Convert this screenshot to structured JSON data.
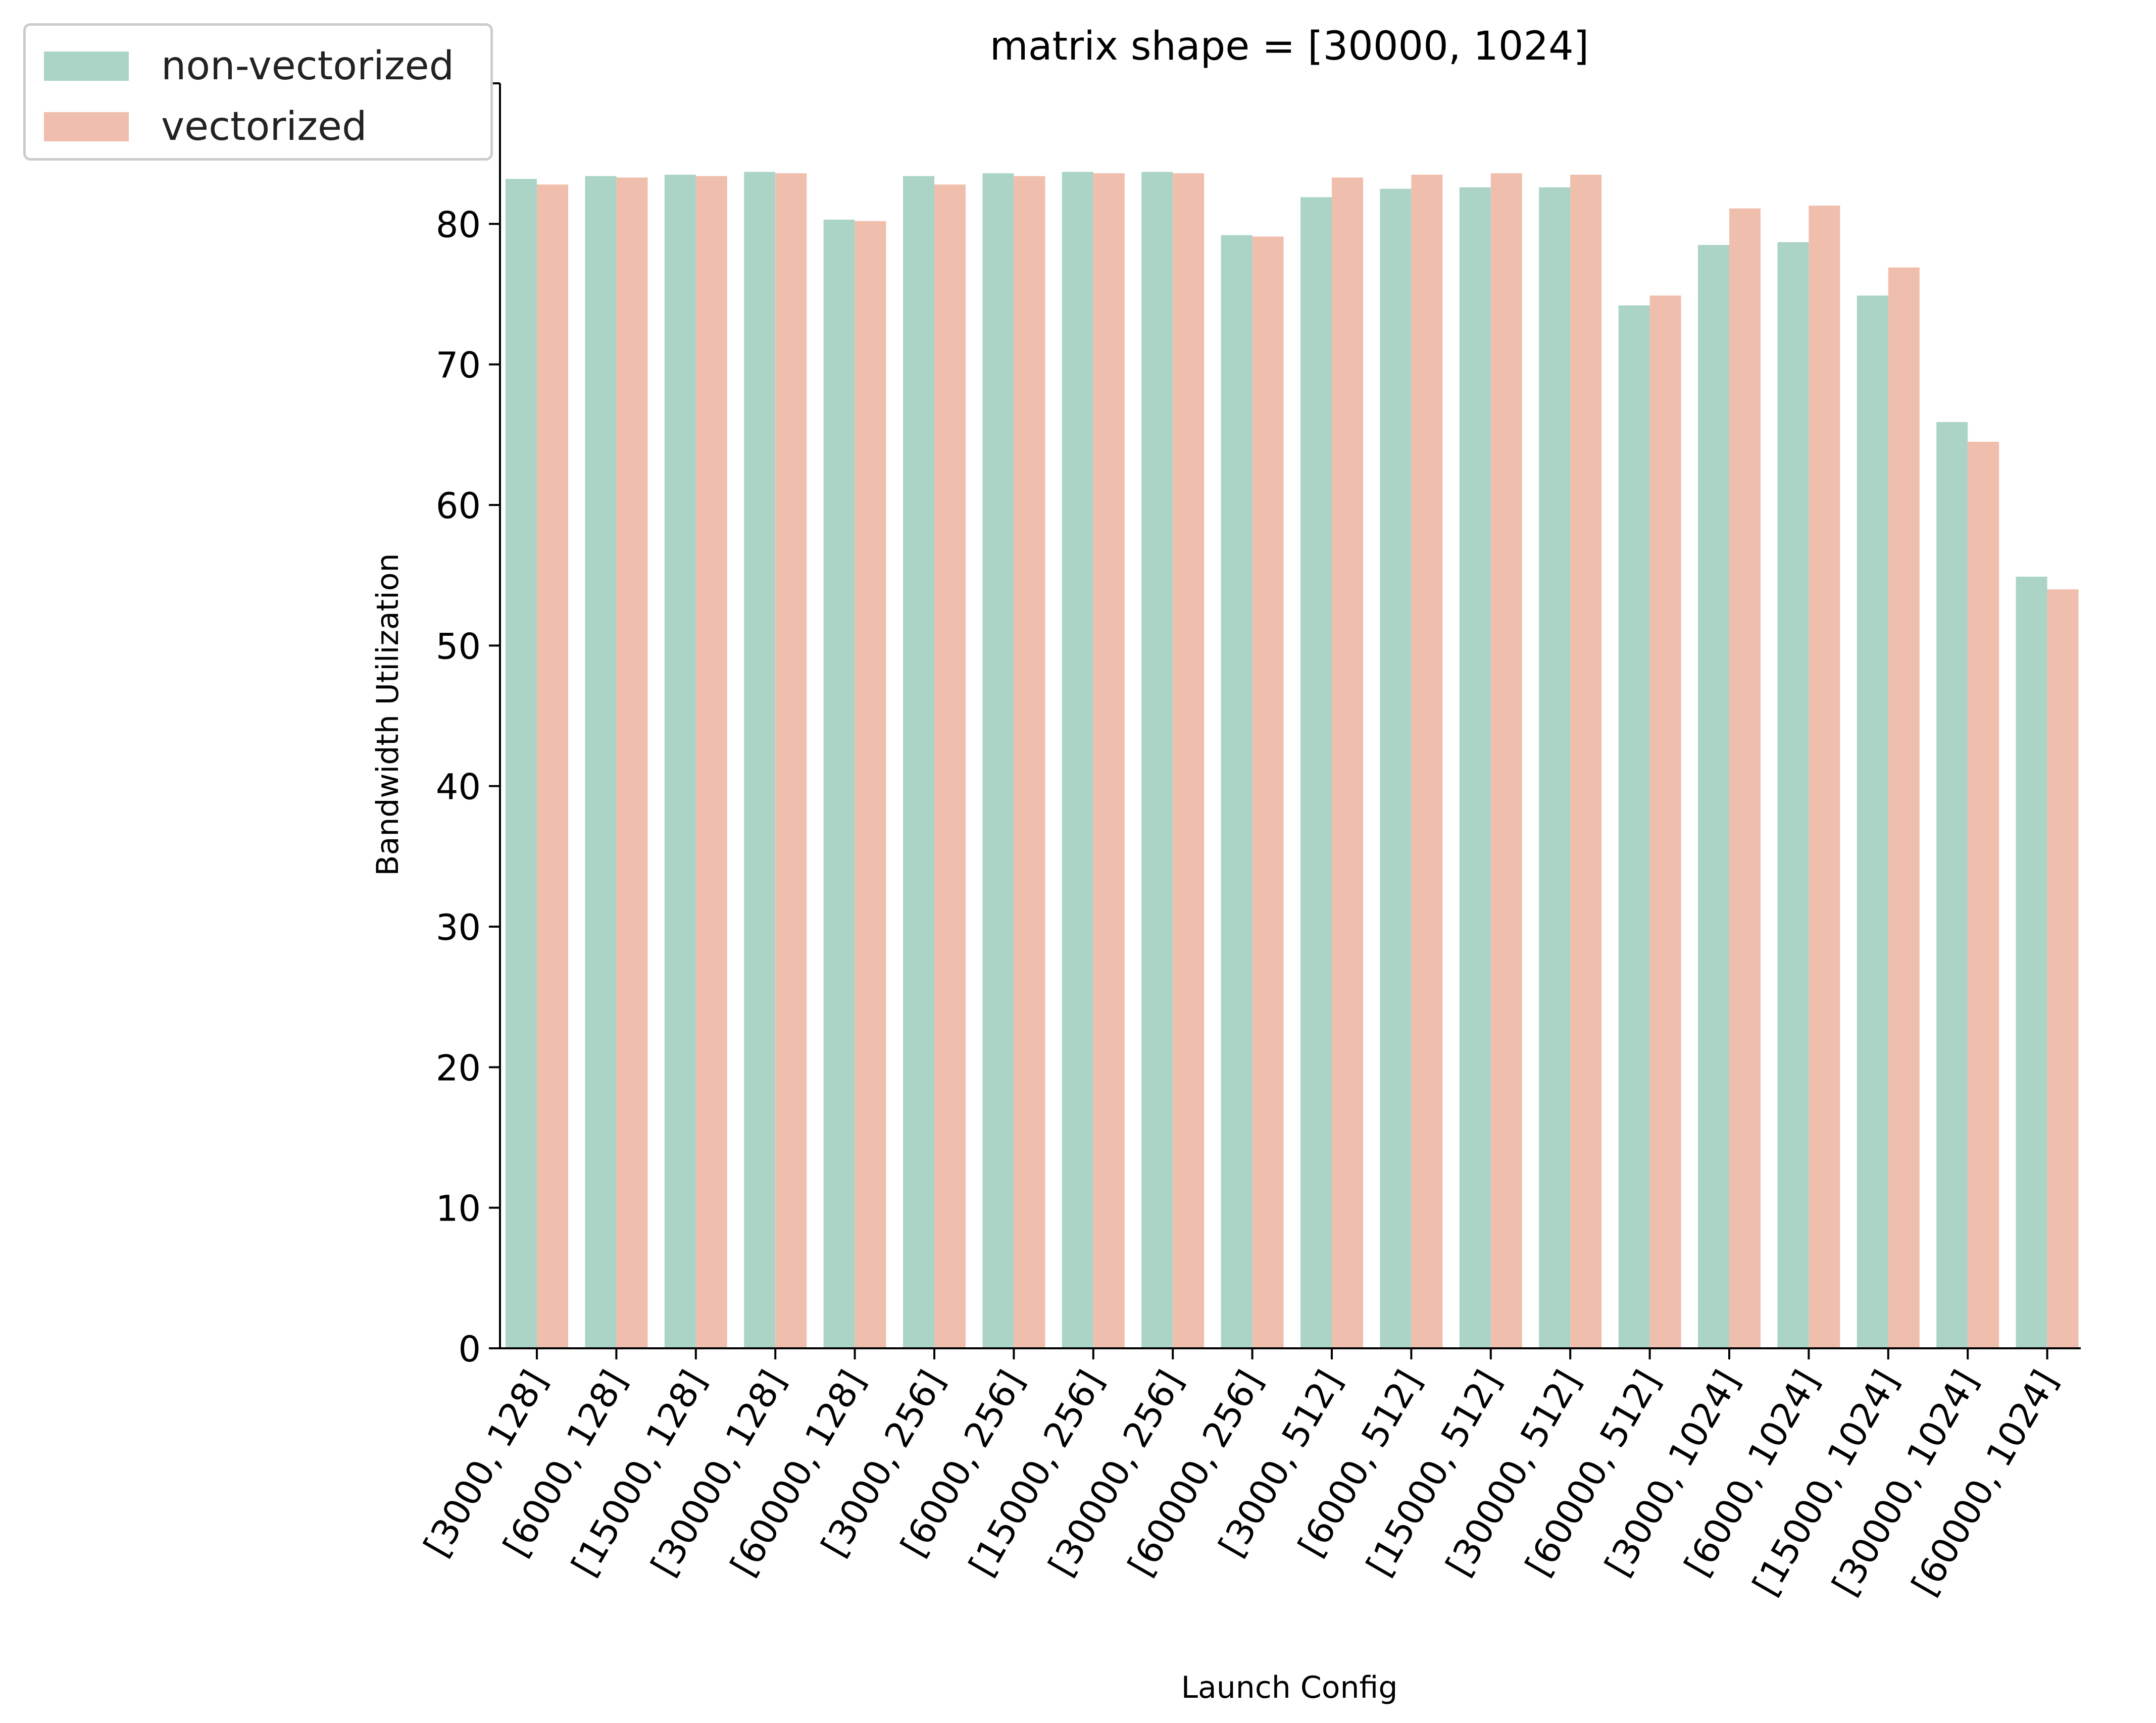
{
  "chart_data": {
    "type": "bar",
    "title": "matrix shape = [30000, 1024]",
    "xlabel": "Launch Config",
    "ylabel": "Bandwidth Utilization",
    "ylim": [
      0,
      90
    ],
    "yticks": [
      0,
      10,
      20,
      30,
      40,
      50,
      60,
      70,
      80,
      90
    ],
    "grid": false,
    "legend": "upper-left outside",
    "categories": [
      "[3000, 128]",
      "[6000, 128]",
      "[15000, 128]",
      "[30000, 128]",
      "[60000, 128]",
      "[3000, 256]",
      "[6000, 256]",
      "[15000, 256]",
      "[30000, 256]",
      "[60000, 256]",
      "[3000, 512]",
      "[6000, 512]",
      "[15000, 512]",
      "[30000, 512]",
      "[60000, 512]",
      "[3000, 1024]",
      "[6000, 1024]",
      "[15000, 1024]",
      "[30000, 1024]",
      "[60000, 1024]"
    ],
    "series": [
      {
        "name": "non-vectorized",
        "color": "#abd4c6",
        "values": [
          83.2,
          83.4,
          83.5,
          83.7,
          80.3,
          83.4,
          83.6,
          83.7,
          83.7,
          79.2,
          81.9,
          82.5,
          82.6,
          82.6,
          74.2,
          78.5,
          78.7,
          74.9,
          65.9,
          54.9
        ]
      },
      {
        "name": "vectorized",
        "color": "#f0bead",
        "values": [
          82.8,
          83.3,
          83.4,
          83.6,
          80.2,
          82.8,
          83.4,
          83.6,
          83.6,
          79.1,
          83.3,
          83.5,
          83.6,
          83.5,
          74.9,
          81.1,
          81.3,
          76.9,
          64.5,
          54.0
        ]
      }
    ]
  }
}
